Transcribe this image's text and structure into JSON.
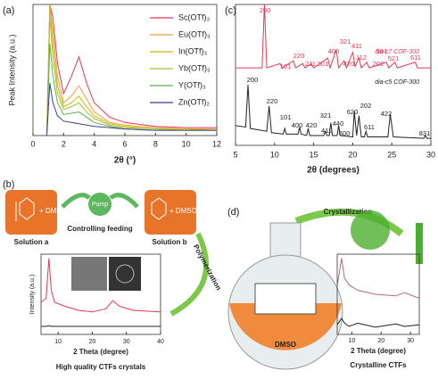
{
  "chart_data": [
    {
      "type": "line",
      "ylabel": "Peak Intensity (a.u.)",
      "xlabel": "2θ (°)",
      "xlim": [
        0,
        12
      ],
      "xticks": [
        0,
        2,
        4,
        6,
        8,
        10,
        12
      ],
      "ylim": [
        0,
        100
      ],
      "legend": "upper right",
      "x": [
        0.9,
        1.1,
        1.3,
        1.6,
        2,
        2.5,
        3,
        3.5,
        4,
        5,
        6,
        8,
        10,
        12
      ],
      "series": [
        {
          "name": "Sc(OTf)₃",
          "color": "#e8384f",
          "values": [
            0,
            100,
            90,
            55,
            32,
            45,
            60,
            40,
            25,
            14,
            10,
            7,
            6,
            6
          ]
        },
        {
          "name": "Eu(OTf)₃",
          "color": "#f0a040",
          "values": [
            0,
            100,
            80,
            45,
            25,
            30,
            38,
            28,
            18,
            10,
            8,
            6,
            5,
            5
          ]
        },
        {
          "name": "In(OTf)₃",
          "color": "#d9b400",
          "values": [
            0,
            100,
            70,
            38,
            22,
            25,
            30,
            22,
            15,
            9,
            7,
            5,
            5,
            4
          ]
        },
        {
          "name": "Yb(OTf)₃",
          "color": "#9bc53d",
          "values": [
            0,
            90,
            60,
            32,
            20,
            22,
            25,
            18,
            13,
            8,
            6,
            5,
            4,
            4
          ]
        },
        {
          "name": "Y(OTf)₃",
          "color": "#5fb04a",
          "values": [
            0,
            70,
            45,
            25,
            16,
            17,
            18,
            14,
            10,
            7,
            5,
            4,
            4,
            4
          ]
        },
        {
          "name": "Zn(OTf)₂",
          "color": "#3b3f8f",
          "values": [
            0,
            40,
            25,
            15,
            11,
            10,
            9,
            8,
            7,
            6,
            5,
            4,
            4,
            4
          ]
        }
      ]
    },
    {
      "type": "line",
      "xlabel": "2θ (degrees)",
      "xlim": [
        5,
        30
      ],
      "xticks": [
        5,
        10,
        15,
        20,
        25,
        30
      ],
      "ylim": [
        0,
        100
      ],
      "series": [
        {
          "name": "dia-c7 COF-300",
          "color": "#e8384f",
          "x": [
            5,
            8.4,
            8.7,
            9,
            10.7,
            11,
            12.4,
            12.7,
            13.6,
            13.9,
            14.7,
            15,
            16.8,
            17.1,
            17.9,
            18.2,
            18.9,
            19.2,
            20,
            20.3,
            20.8,
            21.1,
            21.8,
            22.1,
            24.3,
            24.6,
            25.4,
            25.7,
            28,
            28.3,
            30
          ],
          "values": [
            55,
            55,
            100,
            55,
            58,
            55,
            60,
            55,
            58,
            55,
            58,
            55,
            62,
            55,
            68,
            55,
            60,
            55,
            66,
            56,
            62,
            55,
            59,
            55,
            59,
            55,
            59,
            55,
            59,
            55,
            55
          ],
          "annotations": [
            "200",
            "101",
            "220",
            "211",
            "301",
            "400",
            "321",
            "420",
            "411",
            "112",
            "202",
            "501",
            "521",
            "611"
          ]
        },
        {
          "name": "dia-c5 COF-300",
          "color": "#222222",
          "x": [
            5,
            6.3,
            6.6,
            6.9,
            9,
            9.3,
            9.6,
            11.1,
            11.3,
            11.5,
            13,
            13.2,
            13.4,
            14.1,
            14.3,
            14.5,
            16.3,
            16.5,
            16.7,
            17,
            17.2,
            17.4,
            18,
            18.2,
            18.4,
            20,
            20.2,
            20.5,
            20.8,
            21.1,
            21.5,
            21.7,
            21.9,
            24.5,
            24.8,
            25.2,
            29.1,
            29.3,
            29.5,
            30
          ],
          "values": [
            14,
            13,
            43,
            12,
            10,
            28,
            9,
            8,
            12,
            8,
            8,
            13,
            8,
            7,
            12,
            7,
            7,
            10,
            7,
            7,
            16,
            7,
            7,
            14,
            7,
            6,
            24,
            7,
            21,
            6,
            6,
            10,
            6,
            6,
            22,
            6,
            5,
            7,
            5,
            5
          ],
          "annotations": [
            "200",
            "220",
            "101",
            "400",
            "420",
            "321",
            "411",
            "440",
            "600",
            "620",
            "202",
            "611",
            "422",
            "831"
          ]
        }
      ]
    },
    {
      "type": "line",
      "ylabel": "Intensity (a.u.)",
      "xlabel": "2 Theta (degree)",
      "xlim": [
        5,
        40
      ],
      "xticks": [
        10,
        20,
        30,
        40
      ],
      "ylim": [
        0,
        100
      ],
      "x": [
        5,
        6.5,
        7.3,
        8,
        9,
        12,
        16,
        20,
        24,
        26,
        28,
        32,
        40
      ],
      "series": [
        {
          "color": "#e8384f",
          "values": [
            40,
            45,
            95,
            55,
            40,
            35,
            30,
            28,
            32,
            42,
            35,
            30,
            28
          ]
        },
        {
          "color": "#222222",
          "values": [
            10,
            10,
            11,
            10,
            10,
            10,
            10,
            10,
            10,
            10,
            10,
            10,
            10
          ]
        }
      ]
    },
    {
      "type": "line",
      "xlabel": "2 Theta (degree)",
      "xlim": [
        5,
        33
      ],
      "xticks": [
        10,
        20,
        30
      ],
      "ylim": [
        0,
        100
      ],
      "x": [
        5,
        6.5,
        7.5,
        9,
        12,
        18,
        25,
        28,
        33
      ],
      "series": [
        {
          "color": "#b06a8a",
          "values": [
            60,
            95,
            70,
            62,
            55,
            50,
            48,
            52,
            45
          ]
        },
        {
          "color": "#222222",
          "values": [
            12,
            20,
            14,
            10,
            14,
            9,
            13,
            10,
            12
          ]
        }
      ]
    }
  ],
  "panel_labels": [
    "(a)",
    "(b)",
    "(c)",
    "(d)"
  ],
  "scheme_b": {
    "solution_a": "Solution a",
    "plus_dmso_a": "+ DMSO",
    "pump": "Pump",
    "feeding": "Controlling  feeding",
    "plus_dmso_b": "+ DMSO",
    "solution_b": "Solution b",
    "polymerization": "Polymerization",
    "caption": "High quality CTFs crystals"
  },
  "scheme_d": {
    "crystallization": "Crystallization",
    "solvent": "DMSO",
    "caption": "Crystalline CTFs"
  }
}
